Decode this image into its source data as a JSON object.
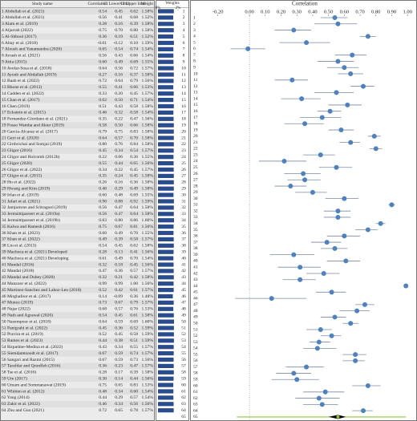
{
  "chart_data": {
    "type": "forest",
    "plot_title": "Correlation",
    "headers": {
      "study": "Study name",
      "value": "Correlation",
      "ci_lower": "CI Lower limit",
      "ci_upper": "CI Upper limit",
      "weight": "Weight",
      "weights_panel": "Weights"
    },
    "categories": [
      "1 Abdullah et al. (2021)",
      "2 Abdullah et al. (2021)",
      "3 Alam et al. (2019)",
      "4 Aljarrah (2022)",
      "5 Al-Shboul (2017)",
      "6 Altay et al. (2018)",
      "7 Aloush and Yanamandra (2020)",
      "8 Arrash et al. (2021)",
      "9 Attia (2015)",
      "10 Avelar-Sosa et al. (2018)",
      "11 Ayoub and Abdallah (2019)",
      "12 Baah et al. (2022)",
      "13 Bhone et al. (2013)",
      "14 Cadden et al. (2022)",
      "15 Chan et al. (2017)",
      "16 Chen (2019)",
      "17 Eckstein et al. (2015)",
      "18 Fernandez-Giordano et al. (2021)",
      "19 Fosso Wamba and Akter (2019)",
      "20 Garcia-Alcaraz et al. (2017)",
      "21 Geyi et al. (2020)",
      "22 Girdwichai and Somjai (2019)",
      "23 Gligor (2016)",
      "24 Gligor and Holcomb (2012b)",
      "25 Gligor (2020)",
      "26 Gligor et al. (2022)",
      "27 Gligor et al. (2015)",
      "28 Hu et al. (2022)",
      "29 Hwang and Kim (2019)",
      "30 Irfan et al. (2019)",
      "31 Jafari et al. (2021)",
      "32 Jamjumrus and Sritragool (2019)",
      "33 Jermsittiparsert et al. (2019a)",
      "34 Jermsittiparsert et al. (2019b)",
      "35 Kalwa and Ramesh (2016)",
      "36 Khan et al. (2023)",
      "37 Khan et al. (2022)",
      "38 Liu et al. (2013)",
      "39 Machuca et al. (2021) Developed",
      "40 Machuca et al. (2021) Developing",
      "41 Mandal (2016)",
      "42 Mandal (2018)",
      "43 Mandal and Dubey (2020)",
      "44 Manzoor et al. (2022)",
      "45 Martinez-Sanchez and Lahoz-Leo (2018)",
      "46 Mirghafoor et al. (2017)",
      "47 Munoz (2019)",
      "48 Najar (2022)",
      "49 Nath and Agrawal (2020)",
      "50 Nazempour et al. (2018)",
      "51 Panigrahi et al. (2022)",
      "52 Pravira et al. (2019)",
      "53 Ramos et al. (2023)",
      "54 Riquelme-Medina et al. (2022)",
      "55 Siemdamtsoodt et al. (2017)",
      "56 Sangari and Razmi (2015)",
      "57 Tarafdar and Qrunfleh (2016)",
      "58 Tse et al. (2016)",
      "59 Ure (2017)",
      "60 Umam and Sommanawat (2019)",
      "61 Whitten et al. (2012)",
      "62 Yang (2014)",
      "63 Zakir et al. (2022)",
      "64 Zhu and Guo (2021)"
    ],
    "values": [
      0.54,
      0.56,
      0.28,
      0.75,
      0.36,
      -0.01,
      0.65,
      0.56,
      0.6,
      0.64,
      0.27,
      0.72,
      0.55,
      0.33,
      0.62,
      0.51,
      0.46,
      0.35,
      0.58,
      0.79,
      0.64,
      0.8,
      0.45,
      0.22,
      0.55,
      0.34,
      0.35,
      0.26,
      0.4,
      0.6,
      0.9,
      0.56,
      0.56,
      0.83,
      0.75,
      0.6,
      0.49,
      0.54,
      0.28,
      0.61,
      0.32,
      0.47,
      0.32,
      0.99,
      0.52,
      0.14,
      0.73,
      0.68,
      0.54,
      0.64,
      0.45,
      0.52,
      0.44,
      0.43,
      0.67,
      0.67,
      0.36,
      0.28,
      0.3,
      0.75,
      0.48,
      0.44,
      0.46,
      0.72
    ],
    "value_labels": [
      "0.54",
      "0.56",
      "0.28",
      "0.75",
      "0.36",
      "-0.01",
      "0.65",
      "0.56",
      "0.60",
      "0.64",
      "0.27",
      "0.72",
      "0.55",
      "0.33",
      "0.62",
      "0.51",
      "0.46",
      "0.35",
      "0.58",
      "0.79",
      "0.64",
      "0.80",
      "0.45",
      "0.22",
      "0.55",
      "0.34",
      "0.35",
      "0.26",
      "0.40",
      "0.60",
      "0.90",
      "0.56",
      "0.56",
      "0.83",
      "0.75",
      "0.60",
      "0.49",
      "0.54",
      "0.28",
      "0.61",
      "0.32",
      "0.47",
      "0.32",
      "0.99",
      "0.52",
      "0.14",
      "0.73",
      "0.68",
      "0.54",
      "0.64",
      "0.45",
      "0.52",
      "0.44",
      "0.43",
      "0.67",
      "0.67",
      "0.36",
      "0.28",
      "0.30",
      "0.75",
      "0.48",
      "0.44",
      "0.46",
      "0.72"
    ],
    "ci_lower": [
      0.45,
      0.41,
      0.16,
      0.7,
      0.19,
      -0.12,
      0.54,
      0.43,
      0.49,
      0.56,
      0.16,
      0.64,
      0.41,
      0.2,
      0.5,
      0.43,
      0.32,
      0.22,
      0.5,
      0.75,
      0.57,
      0.76,
      0.34,
      0.06,
      0.44,
      0.22,
      0.24,
      0.16,
      0.29,
      0.48,
      0.88,
      0.47,
      0.47,
      0.8,
      0.67,
      0.49,
      0.39,
      0.45,
      0.13,
      0.49,
      0.18,
      0.36,
      0.21,
      0.99,
      0.42,
      -0.09,
      0.67,
      0.57,
      0.45,
      0.59,
      0.36,
      0.45,
      0.38,
      0.34,
      0.59,
      0.59,
      0.23,
      0.17,
      0.14,
      0.65,
      0.34,
      0.29,
      0.34,
      0.65
    ],
    "ci_lower_labels": [
      "0.45",
      "0.41",
      "0.16",
      "0.70",
      "0.19",
      "-0.12",
      "0.54",
      "0.43",
      "0.49",
      "0.56",
      "0.16",
      "0.64",
      "0.41",
      "0.20",
      "0.50",
      "0.43",
      "0.32",
      "0.22",
      "0.50",
      "0.75",
      "0.57",
      "0.76",
      "0.34",
      "0.06",
      "0.44",
      "0.22",
      "0.24",
      "0.16",
      "0.29",
      "0.48",
      "0.88",
      "0.47",
      "0.47",
      "0.80",
      "0.67",
      "0.49",
      "0.39",
      "0.45",
      "0.13",
      "0.49",
      "0.18",
      "0.36",
      "0.21",
      "0.99",
      "0.42",
      "-0.09",
      "0.67",
      "0.57",
      "0.45",
      "0.59",
      "0.36",
      "0.45",
      "0.38",
      "0.34",
      "0.59",
      "0.59",
      "0.23",
      "0.17",
      "0.14",
      "0.65",
      "0.34",
      "0.29",
      "0.34",
      "0.65"
    ],
    "ci_upper": [
      0.62,
      0.68,
      0.39,
      0.8,
      0.51,
      0.1,
      0.74,
      0.66,
      0.69,
      0.72,
      0.37,
      0.79,
      0.66,
      0.45,
      0.71,
      0.58,
      0.58,
      0.47,
      0.66,
      0.83,
      0.7,
      0.84,
      0.54,
      0.36,
      0.65,
      0.45,
      0.45,
      0.36,
      0.49,
      0.69,
      0.92,
      0.64,
      0.64,
      0.86,
      0.81,
      0.7,
      0.58,
      0.62,
      0.41,
      0.7,
      0.45,
      0.57,
      0.42,
      1.0,
      0.61,
      0.36,
      0.79,
      0.76,
      0.61,
      0.69,
      0.52,
      0.58,
      0.51,
      0.55,
      0.74,
      0.73,
      0.47,
      0.39,
      0.44,
      0.83,
      0.6,
      0.57,
      0.56,
      0.78
    ],
    "ci_upper_labels": [
      "0.62",
      "0.68",
      "0.39",
      "0.80",
      "0.51",
      "0.10",
      "0.74",
      "0.66",
      "0.69",
      "0.72",
      "0.37",
      "0.79",
      "0.66",
      "0.45",
      "0.71",
      "0.58",
      "0.58",
      "0.47",
      "0.66",
      "0.83",
      "0.70",
      "0.84",
      "0.54",
      "0.36",
      "0.65",
      "0.45",
      "0.45",
      "0.36",
      "0.49",
      "0.69",
      "0.92",
      "0.64",
      "0.64",
      "0.86",
      "0.81",
      "0.70",
      "0.58",
      "0.62",
      "0.41",
      "0.70",
      "0.45",
      "0.57",
      "0.42",
      "1.00",
      "0.61",
      "0.36",
      "0.79",
      "0.76",
      "0.61",
      "0.69",
      "0.52",
      "0.58",
      "0.51",
      "0.55",
      "0.74",
      "0.73",
      "0.47",
      "0.39",
      "0.44",
      "0.83",
      "0.60",
      "0.57",
      "0.56",
      "0.78"
    ],
    "weights": [
      1.58,
      1.52,
      1.58,
      1.58,
      1.52,
      1.59,
      1.54,
      1.54,
      1.55,
      1.57,
      1.58,
      1.56,
      1.53,
      1.57,
      1.54,
      1.58,
      1.54,
      1.56,
      1.58,
      1.58,
      1.58,
      1.58,
      1.57,
      1.55,
      1.56,
      1.57,
      1.58,
      1.58,
      1.58,
      1.55,
      1.59,
      1.58,
      1.58,
      1.6,
      1.56,
      1.55,
      1.57,
      1.58,
      1.56,
      1.54,
      1.56,
      1.57,
      1.58,
      1.56,
      1.57,
      1.48,
      1.57,
      1.53,
      1.58,
      1.6,
      1.59,
      1.59,
      1.59,
      1.57,
      1.57,
      1.56,
      1.57,
      1.58,
      1.56,
      1.53,
      1.54,
      1.54,
      1.56,
      1.57
    ],
    "weight_labels": [
      "1.58%",
      "1.52%",
      "1.58%",
      "1.58%",
      "1.52%",
      "1.59%",
      "1.54%",
      "1.54%",
      "1.55%",
      "1.57%",
      "1.58%",
      "1.56%",
      "1.53%",
      "1.57%",
      "1.54%",
      "1.58%",
      "1.54%",
      "1.56%",
      "1.58%",
      "1.58%",
      "1.58%",
      "1.58%",
      "1.57%",
      "1.55%",
      "1.56%",
      "1.57%",
      "1.58%",
      "1.58%",
      "1.58%",
      "1.55%",
      "1.59%",
      "1.58%",
      "1.58%",
      "1.60%",
      "1.56%",
      "1.55%",
      "1.57%",
      "1.58%",
      "1.56%",
      "1.54%",
      "1.56%",
      "1.57%",
      "1.58%",
      "1.56%",
      "1.57%",
      "1.48%",
      "1.57%",
      "1.53%",
      "1.58%",
      "1.60%",
      "1.59%",
      "1.59%",
      "1.59%",
      "1.57%",
      "1.57%",
      "1.56%",
      "1.57%",
      "1.58%",
      "1.56%",
      "1.53%",
      "1.54%",
      "1.54%",
      "1.56%",
      "1.57%"
    ],
    "row_numbers": [
      1,
      2,
      3,
      4,
      5,
      6,
      7,
      8,
      9,
      10,
      11,
      12,
      13,
      14,
      15,
      16,
      17,
      18,
      19,
      20,
      21,
      22,
      23,
      24,
      25,
      26,
      27,
      28,
      29,
      30,
      31,
      32,
      33,
      34,
      35,
      36,
      37,
      38,
      39,
      40,
      41,
      42,
      43,
      44,
      45,
      46,
      47,
      48,
      49,
      50,
      51,
      52,
      53,
      54,
      55,
      56,
      57,
      58,
      59,
      60,
      61,
      62,
      63,
      64,
      65
    ],
    "summary": {
      "value": 0.56,
      "ci_lower": 0.5,
      "ci_upper": 0.61,
      "pi_lower": -0.08,
      "pi_upper": 0.99
    },
    "weight_xlim": [
      0,
      2
    ],
    "weight_xticks": [
      {
        "value": 0,
        "label": "0%"
      },
      {
        "value": 2,
        "label": "2%"
      }
    ],
    "xlim": [
      -0.3,
      1.05
    ],
    "xticks": [
      {
        "value": -0.2,
        "label": "-0.20"
      },
      {
        "value": 0,
        "label": "0.00"
      },
      {
        "value": 0.1,
        "label": "0.10"
      },
      {
        "value": 0.2,
        "label": "0.20"
      },
      {
        "value": 0.3,
        "label": "0.30"
      },
      {
        "value": 0.4,
        "label": "0.40"
      },
      {
        "value": 0.5,
        "label": "0.50"
      },
      {
        "value": 0.6,
        "label": "0.60"
      },
      {
        "value": 0.7,
        "label": "0.70"
      },
      {
        "value": 0.8,
        "label": "0.80"
      },
      {
        "value": 0.9,
        "label": "0.90"
      },
      {
        "value": 1,
        "label": "1.00"
      }
    ],
    "point_color": "#4f81bd",
    "bar_color": "#2b4c8c",
    "summary_color": "#000000",
    "pi_color": "#8cc63f"
  }
}
